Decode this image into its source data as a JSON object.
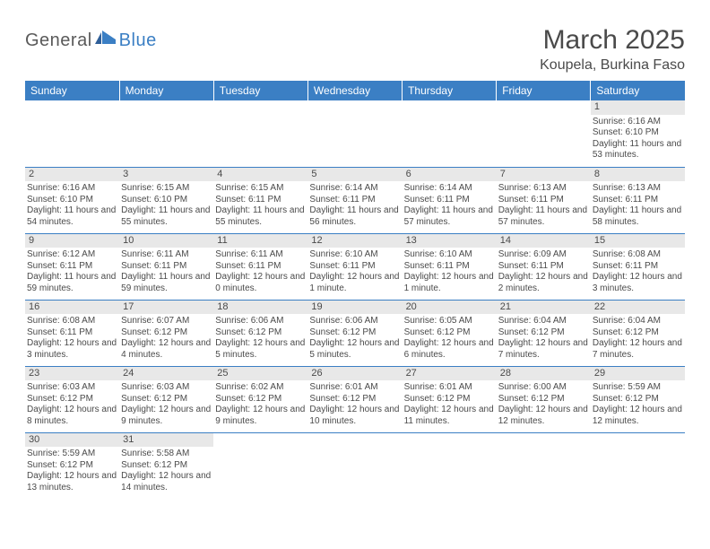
{
  "logo": {
    "text1": "General",
    "text2": "Blue"
  },
  "title": "March 2025",
  "location": "Koupela, Burkina Faso",
  "colors": {
    "header_bg": "#3b7fc4",
    "header_text": "#ffffff",
    "daynum_bg": "#e8e8e8",
    "border": "#3b7fc4",
    "body_text": "#4a4a4a",
    "logo_gray": "#5a5a5a",
    "logo_blue": "#3b7fc4"
  },
  "fonts": {
    "title_size_pt": 22,
    "location_size_pt": 12,
    "weekday_size_pt": 9,
    "daynum_size_pt": 8,
    "cell_size_pt": 7.5
  },
  "weekdays": [
    "Sunday",
    "Monday",
    "Tuesday",
    "Wednesday",
    "Thursday",
    "Friday",
    "Saturday"
  ],
  "weeks": [
    [
      {
        "day": "",
        "lines": []
      },
      {
        "day": "",
        "lines": []
      },
      {
        "day": "",
        "lines": []
      },
      {
        "day": "",
        "lines": []
      },
      {
        "day": "",
        "lines": []
      },
      {
        "day": "",
        "lines": []
      },
      {
        "day": "1",
        "lines": [
          "Sunrise: 6:16 AM",
          "Sunset: 6:10 PM",
          "Daylight: 11 hours and 53 minutes."
        ]
      }
    ],
    [
      {
        "day": "2",
        "lines": [
          "Sunrise: 6:16 AM",
          "Sunset: 6:10 PM",
          "Daylight: 11 hours and 54 minutes."
        ]
      },
      {
        "day": "3",
        "lines": [
          "Sunrise: 6:15 AM",
          "Sunset: 6:10 PM",
          "Daylight: 11 hours and 55 minutes."
        ]
      },
      {
        "day": "4",
        "lines": [
          "Sunrise: 6:15 AM",
          "Sunset: 6:11 PM",
          "Daylight: 11 hours and 55 minutes."
        ]
      },
      {
        "day": "5",
        "lines": [
          "Sunrise: 6:14 AM",
          "Sunset: 6:11 PM",
          "Daylight: 11 hours and 56 minutes."
        ]
      },
      {
        "day": "6",
        "lines": [
          "Sunrise: 6:14 AM",
          "Sunset: 6:11 PM",
          "Daylight: 11 hours and 57 minutes."
        ]
      },
      {
        "day": "7",
        "lines": [
          "Sunrise: 6:13 AM",
          "Sunset: 6:11 PM",
          "Daylight: 11 hours and 57 minutes."
        ]
      },
      {
        "day": "8",
        "lines": [
          "Sunrise: 6:13 AM",
          "Sunset: 6:11 PM",
          "Daylight: 11 hours and 58 minutes."
        ]
      }
    ],
    [
      {
        "day": "9",
        "lines": [
          "Sunrise: 6:12 AM",
          "Sunset: 6:11 PM",
          "Daylight: 11 hours and 59 minutes."
        ]
      },
      {
        "day": "10",
        "lines": [
          "Sunrise: 6:11 AM",
          "Sunset: 6:11 PM",
          "Daylight: 11 hours and 59 minutes."
        ]
      },
      {
        "day": "11",
        "lines": [
          "Sunrise: 6:11 AM",
          "Sunset: 6:11 PM",
          "Daylight: 12 hours and 0 minutes."
        ]
      },
      {
        "day": "12",
        "lines": [
          "Sunrise: 6:10 AM",
          "Sunset: 6:11 PM",
          "Daylight: 12 hours and 1 minute."
        ]
      },
      {
        "day": "13",
        "lines": [
          "Sunrise: 6:10 AM",
          "Sunset: 6:11 PM",
          "Daylight: 12 hours and 1 minute."
        ]
      },
      {
        "day": "14",
        "lines": [
          "Sunrise: 6:09 AM",
          "Sunset: 6:11 PM",
          "Daylight: 12 hours and 2 minutes."
        ]
      },
      {
        "day": "15",
        "lines": [
          "Sunrise: 6:08 AM",
          "Sunset: 6:11 PM",
          "Daylight: 12 hours and 3 minutes."
        ]
      }
    ],
    [
      {
        "day": "16",
        "lines": [
          "Sunrise: 6:08 AM",
          "Sunset: 6:11 PM",
          "Daylight: 12 hours and 3 minutes."
        ]
      },
      {
        "day": "17",
        "lines": [
          "Sunrise: 6:07 AM",
          "Sunset: 6:12 PM",
          "Daylight: 12 hours and 4 minutes."
        ]
      },
      {
        "day": "18",
        "lines": [
          "Sunrise: 6:06 AM",
          "Sunset: 6:12 PM",
          "Daylight: 12 hours and 5 minutes."
        ]
      },
      {
        "day": "19",
        "lines": [
          "Sunrise: 6:06 AM",
          "Sunset: 6:12 PM",
          "Daylight: 12 hours and 5 minutes."
        ]
      },
      {
        "day": "20",
        "lines": [
          "Sunrise: 6:05 AM",
          "Sunset: 6:12 PM",
          "Daylight: 12 hours and 6 minutes."
        ]
      },
      {
        "day": "21",
        "lines": [
          "Sunrise: 6:04 AM",
          "Sunset: 6:12 PM",
          "Daylight: 12 hours and 7 minutes."
        ]
      },
      {
        "day": "22",
        "lines": [
          "Sunrise: 6:04 AM",
          "Sunset: 6:12 PM",
          "Daylight: 12 hours and 7 minutes."
        ]
      }
    ],
    [
      {
        "day": "23",
        "lines": [
          "Sunrise: 6:03 AM",
          "Sunset: 6:12 PM",
          "Daylight: 12 hours and 8 minutes."
        ]
      },
      {
        "day": "24",
        "lines": [
          "Sunrise: 6:03 AM",
          "Sunset: 6:12 PM",
          "Daylight: 12 hours and 9 minutes."
        ]
      },
      {
        "day": "25",
        "lines": [
          "Sunrise: 6:02 AM",
          "Sunset: 6:12 PM",
          "Daylight: 12 hours and 9 minutes."
        ]
      },
      {
        "day": "26",
        "lines": [
          "Sunrise: 6:01 AM",
          "Sunset: 6:12 PM",
          "Daylight: 12 hours and 10 minutes."
        ]
      },
      {
        "day": "27",
        "lines": [
          "Sunrise: 6:01 AM",
          "Sunset: 6:12 PM",
          "Daylight: 12 hours and 11 minutes."
        ]
      },
      {
        "day": "28",
        "lines": [
          "Sunrise: 6:00 AM",
          "Sunset: 6:12 PM",
          "Daylight: 12 hours and 12 minutes."
        ]
      },
      {
        "day": "29",
        "lines": [
          "Sunrise: 5:59 AM",
          "Sunset: 6:12 PM",
          "Daylight: 12 hours and 12 minutes."
        ]
      }
    ],
    [
      {
        "day": "30",
        "lines": [
          "Sunrise: 5:59 AM",
          "Sunset: 6:12 PM",
          "Daylight: 12 hours and 13 minutes."
        ]
      },
      {
        "day": "31",
        "lines": [
          "Sunrise: 5:58 AM",
          "Sunset: 6:12 PM",
          "Daylight: 12 hours and 14 minutes."
        ]
      },
      {
        "day": "",
        "lines": []
      },
      {
        "day": "",
        "lines": []
      },
      {
        "day": "",
        "lines": []
      },
      {
        "day": "",
        "lines": []
      },
      {
        "day": "",
        "lines": []
      }
    ]
  ]
}
